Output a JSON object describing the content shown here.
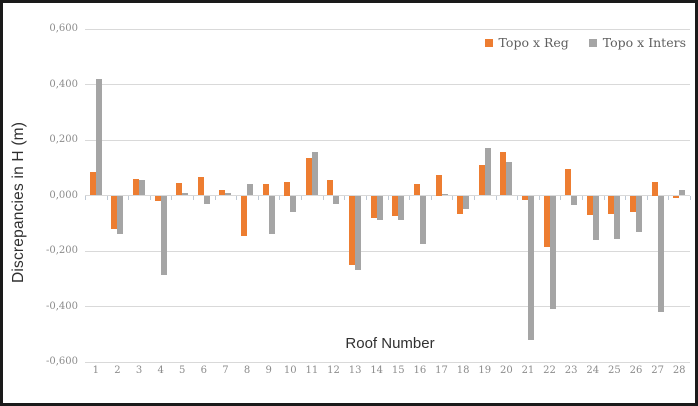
{
  "chart_data": {
    "type": "bar",
    "title": "",
    "xlabel": "Roof Number",
    "ylabel": "Discrepancies in H (m)",
    "categories": [
      "1",
      "2",
      "3",
      "4",
      "5",
      "6",
      "7",
      "8",
      "9",
      "10",
      "11",
      "12",
      "13",
      "14",
      "15",
      "16",
      "17",
      "18",
      "19",
      "20",
      "21",
      "22",
      "23",
      "24",
      "25",
      "26",
      "27",
      "28"
    ],
    "series": [
      {
        "name": "Topo x Reg",
        "color": "#ED7D31",
        "values": [
          0.085,
          -0.12,
          0.06,
          -0.02,
          0.045,
          0.065,
          0.02,
          -0.145,
          0.04,
          0.05,
          0.135,
          0.055,
          -0.25,
          -0.08,
          -0.075,
          0.04,
          0.075,
          -0.065,
          0.11,
          0.155,
          -0.015,
          -0.185,
          0.095,
          -0.07,
          -0.065,
          -0.06,
          0.05,
          -0.01
        ]
      },
      {
        "name": "Topo x Inters",
        "color": "#A5A5A5",
        "values": [
          0.42,
          -0.14,
          0.055,
          -0.285,
          0.01,
          -0.03,
          0.01,
          0.04,
          -0.14,
          -0.06,
          0.155,
          -0.03,
          -0.27,
          -0.09,
          -0.09,
          -0.175,
          0.005,
          -0.05,
          0.17,
          0.12,
          -0.52,
          -0.41,
          -0.035,
          -0.16,
          -0.155,
          -0.13,
          -0.42,
          0.02
        ]
      }
    ],
    "ylim": [
      -0.6,
      0.6
    ],
    "ytick_step": 0.2,
    "yticks": [
      {
        "label": "0,600",
        "value": 0.6
      },
      {
        "label": "0,400",
        "value": 0.4
      },
      {
        "label": "0,200",
        "value": 0.2
      },
      {
        "label": "0,000",
        "value": 0.0
      },
      {
        "label": "-0,200",
        "value": -0.2
      },
      {
        "label": "-0,400",
        "value": -0.4
      },
      {
        "label": "-0,600",
        "value": -0.6
      }
    ],
    "grid": true,
    "legend_position": "top-right",
    "gridline_color": "#d9d9d9",
    "tick_label_color": "#8c8c8c",
    "axis_title_color": "#303030",
    "legend_text_color": "#5f5f5f"
  }
}
